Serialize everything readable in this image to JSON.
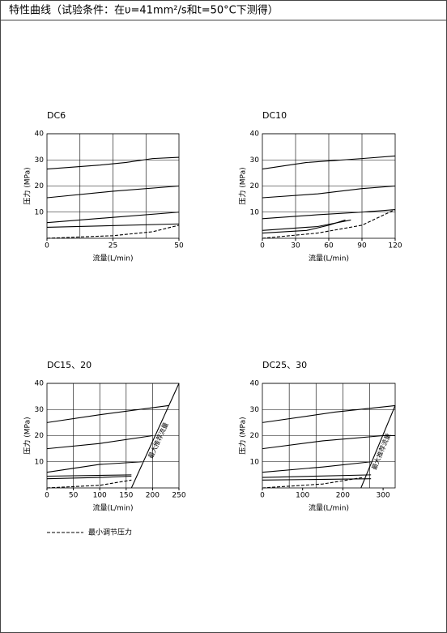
{
  "header": {
    "title": "特性曲线（试验条件：在υ=41mm²/s和t=50°C下测得）"
  },
  "legend": {
    "label": "最小调节压力"
  },
  "chart_data": [
    {
      "type": "line",
      "title": "DC6",
      "x_label": "流量(L/min)",
      "y_label": "压力 (MPa)",
      "xlim": [
        0,
        50
      ],
      "xticks": [
        0,
        25,
        50
      ],
      "xgrid": [
        12.5,
        25,
        37.5
      ],
      "ylim": [
        0,
        40
      ],
      "yticks": [
        10,
        20,
        30,
        40
      ],
      "series": [
        {
          "color": "#000",
          "x": [
            0,
            20,
            30,
            40,
            50
          ],
          "values": [
            26.5,
            28,
            29,
            30.5,
            31
          ]
        },
        {
          "color": "#000",
          "x": [
            0,
            25,
            50
          ],
          "values": [
            15.5,
            18,
            20
          ]
        },
        {
          "color": "#000",
          "x": [
            0,
            25,
            50
          ],
          "values": [
            6,
            8,
            10
          ]
        },
        {
          "color": "#000",
          "x": [
            0,
            50
          ],
          "values": [
            4.2,
            5.5
          ]
        },
        {
          "color": "#000",
          "dash": true,
          "x": [
            0,
            25,
            40,
            50
          ],
          "values": [
            0,
            1,
            2.5,
            5
          ]
        }
      ]
    },
    {
      "type": "line",
      "title": "DC10",
      "x_label": "流量(L/min)",
      "y_label": "压力 (MPa)",
      "xlim": [
        0,
        120
      ],
      "xticks": [
        0,
        30,
        60,
        90,
        120
      ],
      "xgrid": [
        30,
        60,
        90
      ],
      "ylim": [
        0,
        40
      ],
      "yticks": [
        10,
        20,
        30,
        40
      ],
      "series": [
        {
          "color": "#000",
          "x": [
            0,
            40,
            90,
            120
          ],
          "values": [
            26.5,
            29,
            30.5,
            31.5
          ]
        },
        {
          "color": "#000",
          "x": [
            0,
            50,
            90,
            120
          ],
          "values": [
            15.5,
            17,
            19,
            20
          ]
        },
        {
          "color": "#000",
          "x": [
            0,
            50,
            90,
            120
          ],
          "values": [
            7.5,
            9,
            10,
            11
          ]
        },
        {
          "color": "#000",
          "x": [
            0,
            50,
            80
          ],
          "values": [
            3,
            4.5,
            7
          ]
        },
        {
          "color": "#000",
          "x": [
            0,
            40,
            60,
            75
          ],
          "values": [
            2,
            3,
            5,
            7
          ]
        },
        {
          "color": "#000",
          "dash": true,
          "x": [
            0,
            50,
            90,
            120
          ],
          "values": [
            0,
            2,
            5,
            11
          ]
        }
      ]
    },
    {
      "type": "line",
      "title": "DC15、20",
      "x_label": "流量(L/min)",
      "y_label": "压力 (MPa)",
      "xlim": [
        0,
        250
      ],
      "xticks": [
        0,
        50,
        100,
        150,
        200,
        250
      ],
      "xgrid": [
        50,
        100,
        150,
        200
      ],
      "ylim": [
        0,
        40
      ],
      "yticks": [
        10,
        20,
        30,
        40
      ],
      "annotation": "最大推荐流量",
      "series": [
        {
          "color": "#000",
          "x": [
            0,
            100,
            230
          ],
          "values": [
            25,
            28,
            31.5
          ]
        },
        {
          "color": "#000",
          "x": [
            0,
            100,
            200
          ],
          "values": [
            15,
            17,
            20
          ]
        },
        {
          "color": "#000",
          "x": [
            0,
            100,
            180
          ],
          "values": [
            6,
            9,
            10
          ]
        },
        {
          "color": "#000",
          "x": [
            0,
            160
          ],
          "values": [
            4.5,
            5
          ]
        },
        {
          "color": "#000",
          "x": [
            0,
            100,
            160
          ],
          "values": [
            3.5,
            4,
            4.5
          ]
        },
        {
          "color": "#000",
          "dash": true,
          "x": [
            0,
            100,
            160
          ],
          "values": [
            0,
            1,
            3
          ]
        },
        {
          "color": "#000",
          "x": [
            160,
            250
          ],
          "values": [
            0,
            40
          ]
        }
      ]
    },
    {
      "type": "line",
      "title": "DC25、30",
      "x_label": "流量(L/min)",
      "y_label": "压力 (MPa)",
      "xlim": [
        0,
        330
      ],
      "xticks": [
        0,
        100,
        200,
        300
      ],
      "xgrid": [
        66.7,
        133.3,
        200,
        266.7
      ],
      "ylim": [
        0,
        40
      ],
      "yticks": [
        10,
        20,
        30,
        40
      ],
      "annotation": "最大推荐流量",
      "series": [
        {
          "color": "#000",
          "x": [
            0,
            180,
            330
          ],
          "values": [
            25,
            29,
            31.5
          ]
        },
        {
          "color": "#000",
          "x": [
            0,
            150,
            300,
            330
          ],
          "values": [
            15,
            18,
            20,
            20
          ]
        },
        {
          "color": "#000",
          "x": [
            0,
            150,
            270
          ],
          "values": [
            6,
            8,
            10
          ]
        },
        {
          "color": "#000",
          "x": [
            0,
            270
          ],
          "values": [
            4,
            5
          ]
        },
        {
          "color": "#000",
          "x": [
            0,
            270
          ],
          "values": [
            3,
            3.5
          ]
        },
        {
          "color": "#000",
          "dash": true,
          "x": [
            0,
            150,
            250
          ],
          "values": [
            0,
            1.5,
            4
          ]
        },
        {
          "color": "#000",
          "x": [
            245,
            330
          ],
          "values": [
            0,
            31.5
          ]
        }
      ]
    }
  ]
}
